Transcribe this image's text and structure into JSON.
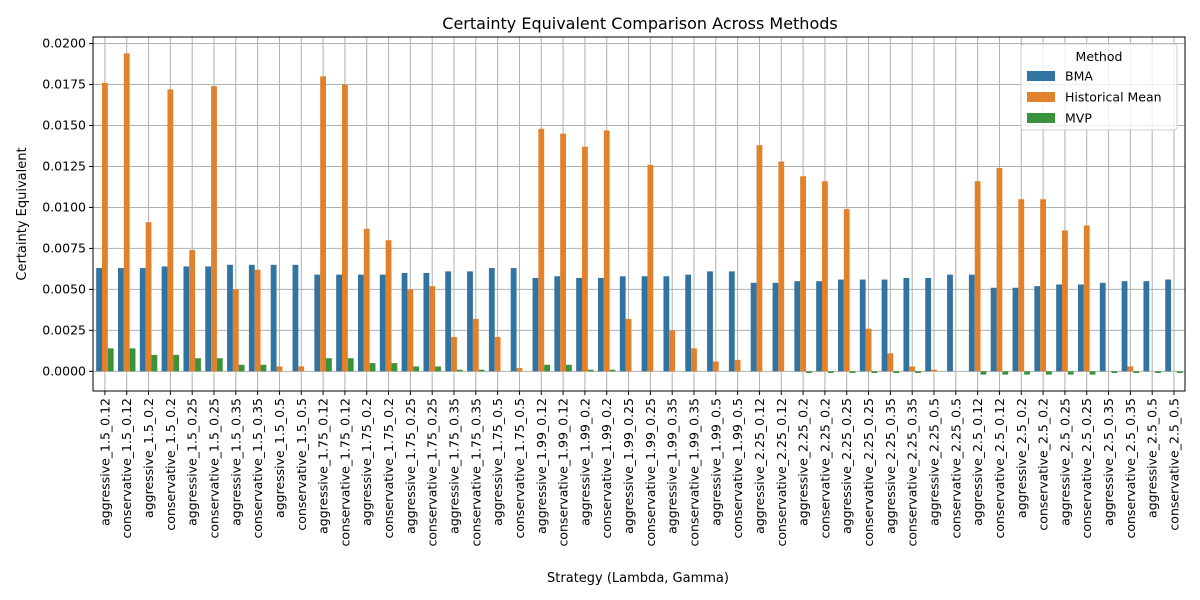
{
  "chart_data": {
    "type": "bar",
    "title": "Certainty Equivalent Comparison Across Methods",
    "xlabel": "Strategy (Lambda, Gamma)",
    "ylabel": "Certainty Equivalent",
    "ylim": [
      -0.0012,
      0.0204
    ],
    "yticks": [
      0.0,
      0.0025,
      0.005,
      0.0075,
      0.01,
      0.0125,
      0.015,
      0.0175,
      0.02
    ],
    "ytick_labels": [
      "0.0000",
      "0.0025",
      "0.0050",
      "0.0075",
      "0.0100",
      "0.0125",
      "0.0150",
      "0.0175",
      "0.0200"
    ],
    "grid": true,
    "legend": {
      "title": "Method",
      "position": "top-right"
    },
    "categories": [
      "aggressive_1.5_0.12",
      "conservative_1.5_0.12",
      "aggressive_1.5_0.2",
      "conservative_1.5_0.2",
      "aggressive_1.5_0.25",
      "conservative_1.5_0.25",
      "aggressive_1.5_0.35",
      "conservative_1.5_0.35",
      "aggressive_1.5_0.5",
      "conservative_1.5_0.5",
      "aggressive_1.75_0.12",
      "conservative_1.75_0.12",
      "aggressive_1.75_0.2",
      "conservative_1.75_0.2",
      "aggressive_1.75_0.25",
      "conservative_1.75_0.25",
      "aggressive_1.75_0.35",
      "conservative_1.75_0.35",
      "aggressive_1.75_0.5",
      "conservative_1.75_0.5",
      "aggressive_1.99_0.12",
      "conservative_1.99_0.12",
      "aggressive_1.99_0.2",
      "conservative_1.99_0.2",
      "aggressive_1.99_0.25",
      "conservative_1.99_0.25",
      "aggressive_1.99_0.35",
      "conservative_1.99_0.35",
      "aggressive_1.99_0.5",
      "conservative_1.99_0.5",
      "aggressive_2.25_0.12",
      "conservative_2.25_0.12",
      "aggressive_2.25_0.2",
      "conservative_2.25_0.2",
      "aggressive_2.25_0.25",
      "conservative_2.25_0.25",
      "aggressive_2.25_0.35",
      "conservative_2.25_0.35",
      "aggressive_2.25_0.5",
      "conservative_2.25_0.5",
      "aggressive_2.5_0.12",
      "conservative_2.5_0.12",
      "aggressive_2.5_0.2",
      "conservative_2.5_0.2",
      "aggressive_2.5_0.25",
      "conservative_2.5_0.25",
      "aggressive_2.5_0.35",
      "conservative_2.5_0.35",
      "aggressive_2.5_0.5",
      "conservative_2.5_0.5"
    ],
    "series": [
      {
        "name": "BMA",
        "color": "#3274a1",
        "values": [
          0.0063,
          0.0063,
          0.0063,
          0.0064,
          0.0064,
          0.0064,
          0.0065,
          0.0065,
          0.0065,
          0.0065,
          0.0059,
          0.0059,
          0.0059,
          0.0059,
          0.006,
          0.006,
          0.0061,
          0.0061,
          0.0063,
          0.0063,
          0.0057,
          0.0058,
          0.0057,
          0.0057,
          0.0058,
          0.0058,
          0.0058,
          0.0059,
          0.0061,
          0.0061,
          0.0054,
          0.0054,
          0.0055,
          0.0055,
          0.0056,
          0.0056,
          0.0056,
          0.0057,
          0.0057,
          0.0059,
          0.0059,
          0.0051,
          0.0051,
          0.0052,
          0.0053,
          0.0053,
          0.0054,
          0.0055,
          0.0055,
          0.0056
        ]
      },
      {
        "name": "Historical Mean",
        "color": "#e1812c",
        "values": [
          0.0176,
          0.0194,
          0.0091,
          0.0172,
          0.0074,
          0.0174,
          0.005,
          0.0062,
          0.0003,
          0.0003,
          0.018,
          0.0175,
          0.0087,
          0.008,
          0.005,
          0.0052,
          0.0021,
          0.0032,
          0.0021,
          0.0002,
          0.0148,
          0.0145,
          0.0137,
          0.0147,
          0.0032,
          0.0126,
          0.0025,
          0.0014,
          0.0006,
          0.0007,
          0.0138,
          0.0128,
          0.0119,
          0.0116,
          0.0099,
          0.0026,
          0.0011,
          0.0003,
          0.0001,
          0.0,
          0.0116,
          0.0124,
          0.0105,
          0.0105,
          0.0086,
          0.0089,
          0.0,
          0.0003,
          0.0,
          0.0
        ]
      },
      {
        "name": "MVP",
        "color": "#3a923a",
        "values": [
          0.0014,
          0.0014,
          0.001,
          0.001,
          0.0008,
          0.0008,
          0.0004,
          0.0004,
          0.0,
          0.0,
          0.0008,
          0.0008,
          0.0005,
          0.0005,
          0.0003,
          0.0003,
          0.0001,
          0.0001,
          0.0,
          0.0,
          0.0004,
          0.0004,
          0.0001,
          0.0001,
          0.0,
          0.0,
          0.0,
          0.0,
          0.0,
          0.0,
          0.0,
          0.0,
          -0.0001,
          -0.0001,
          -0.0001,
          -0.0001,
          -0.0001,
          -0.0001,
          0.0,
          0.0,
          -0.0002,
          -0.0002,
          -0.0002,
          -0.0002,
          -0.0002,
          -0.0002,
          -0.0001,
          -0.0001,
          -0.0001,
          -0.0001
        ]
      }
    ]
  }
}
